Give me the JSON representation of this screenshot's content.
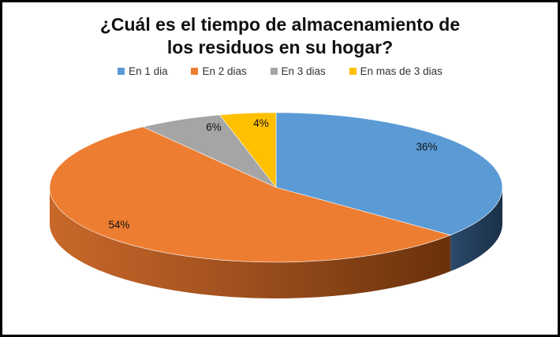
{
  "chart_data": {
    "type": "pie",
    "style": "3d",
    "title": "¿Cuál es el tiempo de almacenamiento de los residuos en su hogar?",
    "title_lines": [
      "¿Cuál es el tiempo de almacenamiento de",
      "los residuos en su hogar?"
    ],
    "legend_position": "top",
    "categories": [
      "En 1 dia",
      "En 2 dias",
      "En 3 dias",
      "En mas de 3 dias"
    ],
    "values": [
      36,
      54,
      6,
      4
    ],
    "labels": [
      "36%",
      "54%",
      "6%",
      "4%"
    ],
    "colors": [
      "#5b9bd5",
      "#ed7d31",
      "#a5a5a5",
      "#ffc000"
    ],
    "side_colors": [
      "#1f3a56",
      "#8a4212",
      "#5e5e5e",
      "#8f6c00"
    ]
  }
}
